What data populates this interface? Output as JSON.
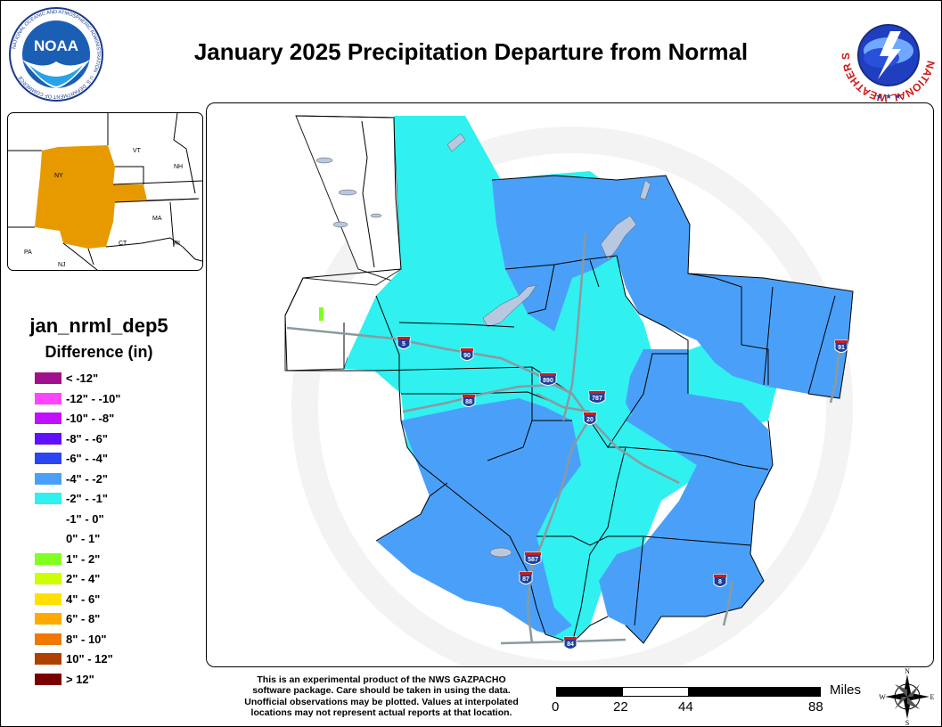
{
  "title": "January 2025 Precipitation Departure from Normal",
  "logos": {
    "noaa_text": "NOAA",
    "noaa_ring_text": "NATIONAL OCEANIC AND ATMOSPHERIC ADMINISTRATION · U.S. DEPARTMENT OF COMMERCE",
    "nws_ring_text": "NATIONAL WEATHER SERVICE"
  },
  "inset_map": {
    "state_labels": [
      "NY",
      "VT",
      "NH",
      "MA",
      "CT",
      "RI",
      "PA",
      "NJ"
    ],
    "highlight_color": "#e69a00"
  },
  "legend": {
    "name": "jan_nrml_dep5",
    "title": "Difference (in)",
    "items": [
      {
        "label": "< -12\"",
        "color": "#a0108c"
      },
      {
        "label": "-12\" - -10\"",
        "color": "#ff44ff"
      },
      {
        "label": "-10\" - -8\"",
        "color": "#c010ff"
      },
      {
        "label": "-8\" - -6\"",
        "color": "#6010ff"
      },
      {
        "label": "-6\" - -4\"",
        "color": "#2a46f0"
      },
      {
        "label": "-4\" - -2\"",
        "color": "#4aa0f8"
      },
      {
        "label": "-2\" - -1\"",
        "color": "#30f0f0"
      },
      {
        "label": "-1\" - 0\"",
        "color": "#ffffff"
      },
      {
        "label": "0\" - 1\"",
        "color": "#ffffff"
      },
      {
        "label": "1\" - 2\"",
        "color": "#80ff20"
      },
      {
        "label": "2\" - 4\"",
        "color": "#ccff00"
      },
      {
        "label": "4\" - 6\"",
        "color": "#ffe000"
      },
      {
        "label": "6\" - 8\"",
        "color": "#ffaa00"
      },
      {
        "label": "8\" - 10\"",
        "color": "#f07800"
      },
      {
        "label": "10\" - 12\"",
        "color": "#b04000"
      },
      {
        "label": "> 12\"",
        "color": "#7a0000"
      }
    ]
  },
  "map": {
    "colors": {
      "dark": "#4aa0f8",
      "light": "#30f0f0",
      "white": "#ffffff",
      "green": "#80ff20",
      "water": "#b8c8e0"
    },
    "interstate_shields": [
      "5",
      "90",
      "890",
      "787",
      "88",
      "20",
      "91",
      "587",
      "87",
      "8",
      "84"
    ]
  },
  "disclaimer": [
    "This is an experimental product of the NWS GAZPACHO",
    "software package. Care should be taken in using the data.",
    "Unofficial observations may be plotted. Values at interpolated",
    "locations may not represent actual reports at that location."
  ],
  "scale": {
    "unit": "Miles",
    "ticks": [
      "0",
      "22",
      "44",
      "88"
    ]
  },
  "compass": {
    "n": "N",
    "s": "S",
    "e": "E",
    "w": "W"
  }
}
